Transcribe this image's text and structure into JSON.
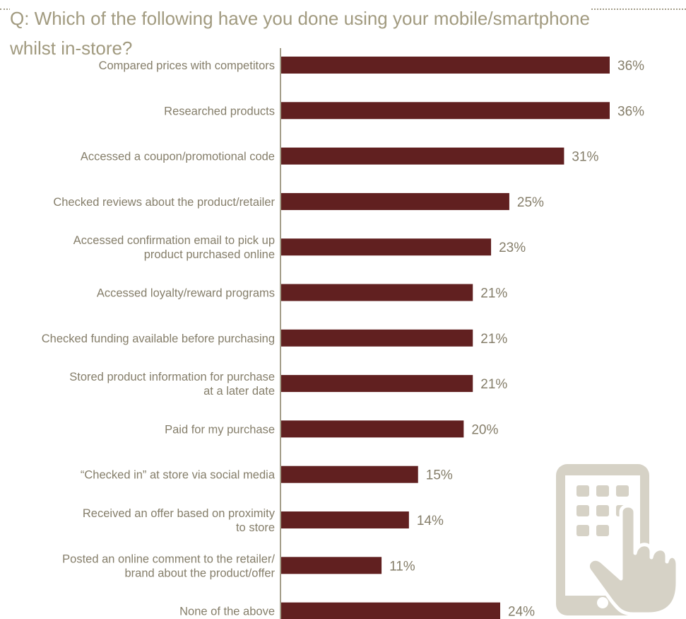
{
  "question": {
    "line1": "Q: Which of the following have you done using your mobile/smartphone",
    "line2": "whilst in-store?"
  },
  "colors": {
    "bar": "#612020",
    "text": "#857e6a",
    "title": "#a19a7f",
    "axis": "#a49e8a",
    "icon": "#d6d2c6"
  },
  "icon": "phone-touch-icon",
  "chart_data": {
    "type": "bar",
    "orientation": "horizontal",
    "grid": false,
    "xlim": [
      0,
      36
    ],
    "unit": "%",
    "categories": [
      [
        "Compared prices with competitors"
      ],
      [
        "Researched products"
      ],
      [
        "Accessed a coupon/promotional code"
      ],
      [
        "Checked reviews about the product/retailer"
      ],
      [
        "Accessed confirmation email to pick up",
        "product purchased online"
      ],
      [
        "Accessed loyalty/reward programs"
      ],
      [
        "Checked funding available before purchasing"
      ],
      [
        "Stored product information for purchase",
        "at a later date"
      ],
      [
        "Paid for my purchase"
      ],
      [
        "“Checked in” at store via social media"
      ],
      [
        "Received an offer based on proximity",
        "to store"
      ],
      [
        "Posted an online comment to the retailer/",
        "brand about the product/offer"
      ],
      [
        "None of the above"
      ]
    ],
    "values": [
      36,
      36,
      31,
      25,
      23,
      21,
      21,
      21,
      20,
      15,
      14,
      11,
      24
    ],
    "value_labels": [
      "36%",
      "36%",
      "31%",
      "25%",
      "23%",
      "21%",
      "21%",
      "21%",
      "20%",
      "15%",
      "14%",
      "11%",
      "24%"
    ]
  }
}
